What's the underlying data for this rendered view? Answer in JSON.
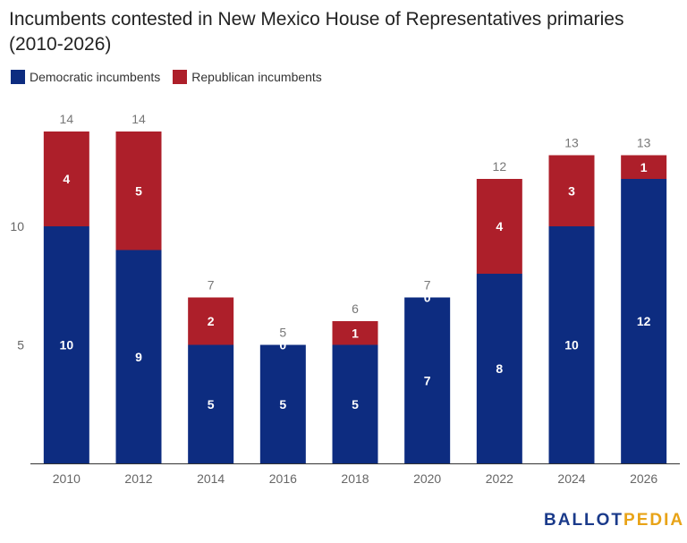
{
  "chart_data": {
    "type": "bar",
    "stacked": true,
    "title": "Incumbents contested in New Mexico House of Representatives primaries (2010-2026)",
    "xlabel": "",
    "ylabel": "",
    "categories": [
      "2010",
      "2012",
      "2014",
      "2016",
      "2018",
      "2020",
      "2022",
      "2024",
      "2026"
    ],
    "series": [
      {
        "name": "Democratic incumbents",
        "color": "#0d2c80",
        "values": [
          10,
          9,
          5,
          5,
          5,
          7,
          8,
          10,
          12
        ]
      },
      {
        "name": "Republican incumbents",
        "color": "#ad1f2a",
        "values": [
          4,
          5,
          2,
          0,
          1,
          0,
          4,
          3,
          1
        ]
      }
    ],
    "totals": [
      14,
      14,
      7,
      5,
      6,
      7,
      12,
      13,
      13
    ],
    "ylim": [
      0,
      14
    ],
    "yticks": [
      5,
      10
    ],
    "legend": "top-left",
    "grid": false
  },
  "logo": {
    "part1": "BALLOT",
    "part2": "PEDIA"
  }
}
